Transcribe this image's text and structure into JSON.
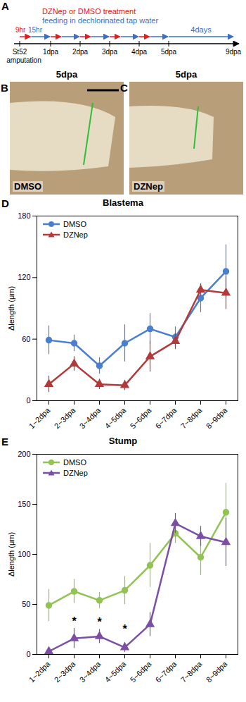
{
  "panels": {
    "A": {
      "label": "A",
      "treatment": "DZNep or DMSO treatment",
      "feeding": "feeding in dechlorinated tap water",
      "intervals": [
        "9hr",
        "15hr"
      ],
      "start": [
        "St52",
        "amputation"
      ],
      "timepoints": [
        "1dpa",
        "2dpa",
        "3dpa",
        "4dpa",
        "5dpa",
        "9dpa"
      ],
      "span": "4days"
    },
    "B": {
      "label": "B",
      "heading": "5dpa",
      "treatment": "DMSO"
    },
    "C": {
      "label": "C",
      "heading": "5dpa",
      "treatment": "DZNep"
    }
  },
  "chart_data": [
    {
      "type": "line",
      "panel_label": "D",
      "title": "Blastema",
      "y_label": "Δlength (μm)",
      "categories": [
        "1~2dpa",
        "2~3dpa",
        "3~4dpa",
        "4~5dpa",
        "5~6dpa",
        "6~7dpa",
        "7~8dpa",
        "8~9dpa"
      ],
      "series": [
        {
          "name": "DMSO",
          "color": "#4a7fd0",
          "marker": "circle",
          "values": [
            59,
            56,
            34,
            56,
            70,
            62,
            100,
            126
          ],
          "errors": [
            14,
            8,
            8,
            18,
            15,
            10,
            14,
            26
          ]
        },
        {
          "name": "DZNep",
          "color": "#b23a3a",
          "marker": "triangle",
          "values": [
            16,
            36,
            16,
            15,
            43,
            58,
            108,
            105
          ],
          "errors": [
            8,
            7,
            5,
            5,
            15,
            8,
            6,
            16
          ]
        }
      ],
      "ylim": [
        0,
        180
      ],
      "yticks": [
        0,
        60,
        120,
        180
      ],
      "legend": "top-left"
    },
    {
      "type": "line",
      "panel_label": "E",
      "title": "Stump",
      "y_label": "Δlength (μm)",
      "categories": [
        "1~2dpa",
        "2~3dpa",
        "3~4dpa",
        "4~5dpa",
        "5~6dpa",
        "6~7dpa",
        "7~8dpa",
        "8~9dpa"
      ],
      "series": [
        {
          "name": "DMSO",
          "color": "#92c353",
          "marker": "circle",
          "values": [
            49,
            63,
            54,
            64,
            89,
            121,
            97,
            142
          ],
          "errors": [
            16,
            12,
            8,
            14,
            22,
            10,
            18,
            29
          ]
        },
        {
          "name": "DZNep",
          "color": "#7b4fa5",
          "marker": "triangle",
          "values": [
            3,
            16,
            18,
            7,
            30,
            131,
            118,
            112
          ],
          "errors": [
            3,
            10,
            7,
            5,
            12,
            10,
            10,
            24
          ]
        }
      ],
      "ylim": [
        0,
        200
      ],
      "yticks": [
        0,
        50,
        100,
        150,
        200
      ],
      "legend": "top-left",
      "annotations": [
        {
          "x": "2~3dpa",
          "y": 33,
          "text": "*"
        },
        {
          "x": "3~4dpa",
          "y": 32,
          "text": "*"
        },
        {
          "x": "4~5dpa",
          "y": 25,
          "text": "*"
        }
      ]
    }
  ]
}
